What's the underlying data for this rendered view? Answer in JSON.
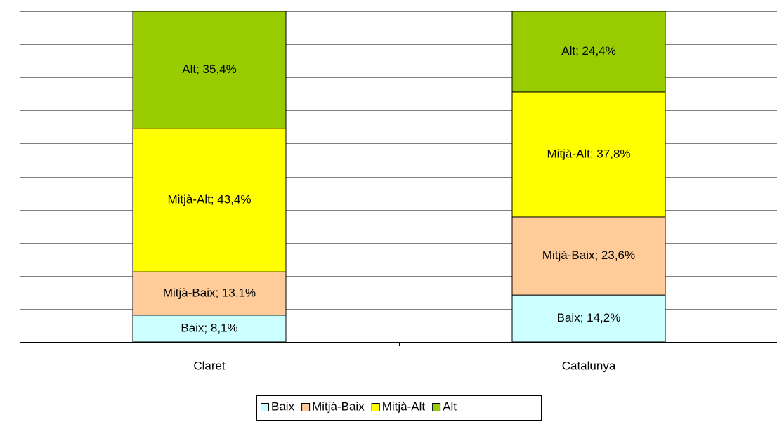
{
  "chart_data": {
    "type": "stacked_bar",
    "categories": [
      "Claret",
      "Catalunya"
    ],
    "series": [
      {
        "name": "Baix",
        "color": "#ccffff",
        "values": [
          8.1,
          14.2
        ],
        "value_labels": [
          "Baix; 8,1%",
          "Baix; 14,2%"
        ]
      },
      {
        "name": "Mitjà-Baix",
        "color": "#ffcc99",
        "values": [
          13.1,
          23.6
        ],
        "value_labels": [
          "Mitjà-Baix; 13,1%",
          "Mitjà-Baix; 23,6%"
        ]
      },
      {
        "name": "Mitjà-Alt",
        "color": "#ffff00",
        "values": [
          43.4,
          37.8
        ],
        "value_labels": [
          "Mitjà-Alt; 43,4%",
          "Mitjà-Alt; 37,8%"
        ]
      },
      {
        "name": "Alt",
        "color": "#99cc00",
        "values": [
          35.4,
          24.4
        ],
        "value_labels": [
          "Alt; 35,4%",
          "Alt; 24,4%"
        ]
      }
    ],
    "ylim": [
      0,
      100
    ],
    "yticks": [
      0,
      10,
      20,
      30,
      40,
      50,
      60,
      70,
      80,
      90,
      100
    ],
    "grid": true,
    "legend": "bottom"
  }
}
